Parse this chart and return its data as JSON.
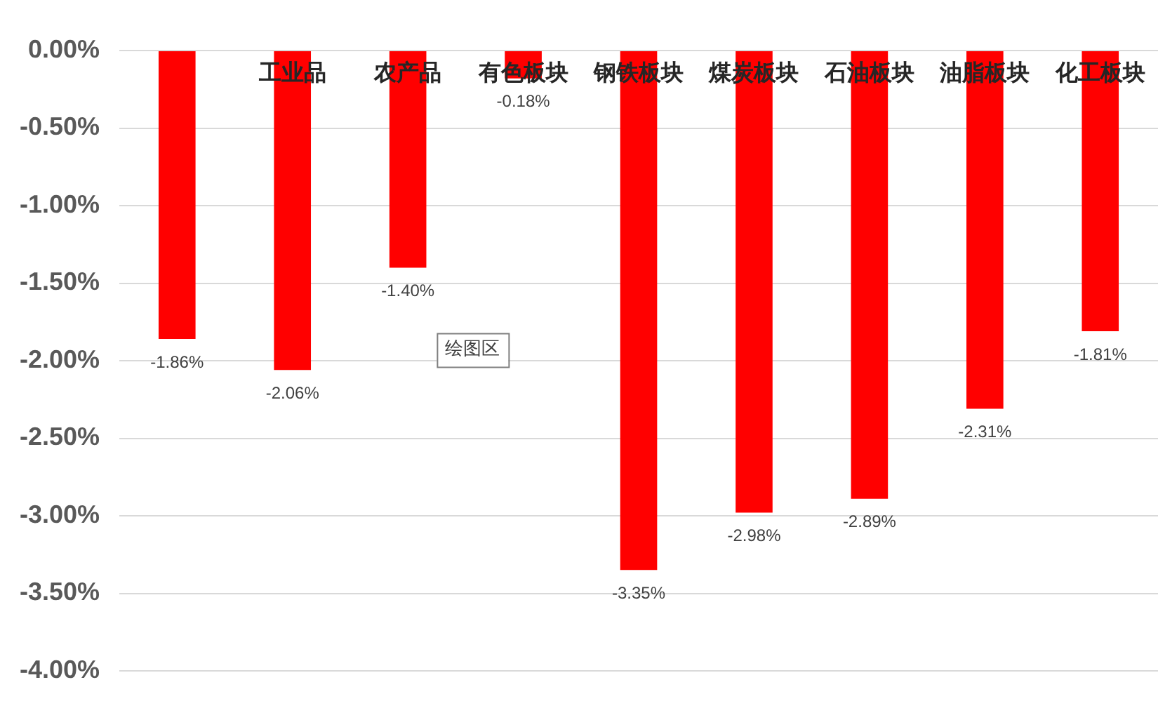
{
  "chart_data": {
    "type": "bar",
    "categories": [
      null,
      "工业品",
      "农产品",
      "有色板块",
      "钢铁板块",
      "煤炭板块",
      "石油板块",
      "油脂板块",
      "化工板块"
    ],
    "values": [
      -1.86,
      -2.06,
      -1.4,
      -0.18,
      -3.35,
      -2.98,
      -2.89,
      -2.31,
      -1.81
    ],
    "color": "#ff0000",
    "value_labels": [
      "-1.86%",
      "-2.06%",
      "-1.40%",
      "-0.18%",
      "-3.35%",
      "-2.98%",
      "-2.89%",
      "-2.31%",
      "-1.81%"
    ],
    "ylim": [
      -4,
      0
    ],
    "yticks": [
      {
        "value": 0,
        "label": "0.00%"
      },
      {
        "value": -0.5,
        "label": "-0.50%"
      },
      {
        "value": -1,
        "label": "-1.00%"
      },
      {
        "value": -1.5,
        "label": "-1.50%"
      },
      {
        "value": -2,
        "label": "-2.00%"
      },
      {
        "value": -2.5,
        "label": "-2.50%"
      },
      {
        "value": -3,
        "label": "-3.00%"
      },
      {
        "value": -3.5,
        "label": "-3.50%"
      },
      {
        "value": -4,
        "label": "-4.00%"
      }
    ],
    "grid": "y",
    "legend": false,
    "annotations": [
      "绘图区"
    ]
  }
}
